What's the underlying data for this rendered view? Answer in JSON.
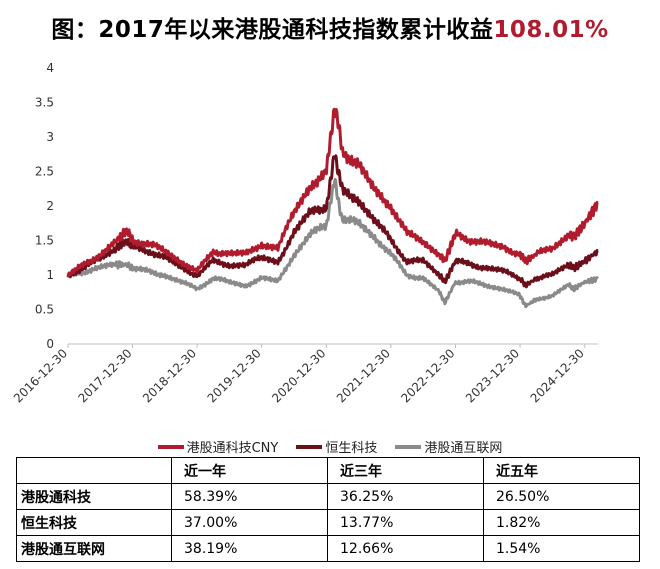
{
  "title": {
    "prefix": "图：2017年以来港股通科技指数累计收益",
    "highlight": "108.01%"
  },
  "colors": {
    "series1": "#b01c2e",
    "series2": "#6b0f1a",
    "series3": "#8a8a8a",
    "highlight": "#b01c2e"
  },
  "chart_data": {
    "type": "line",
    "title": "图：2017年以来港股通科技指数累计收益108.01%",
    "xlabel": "",
    "ylabel": "",
    "ylim": [
      0,
      4
    ],
    "yticks": [
      "0",
      "0.5",
      "1",
      "1.5",
      "2",
      "2.5",
      "3",
      "3.5",
      "4"
    ],
    "xticks": [
      "2016-12-30",
      "2017-12-30",
      "2018-12-30",
      "2019-12-30",
      "2020-12-30",
      "2021-12-30",
      "2022-12-30",
      "2023-12-30",
      "2024-12-30"
    ],
    "grid": false,
    "legend_position": "bottom",
    "x": [
      "2016-12-30",
      "2017-03-31",
      "2017-06-30",
      "2017-09-30",
      "2017-11-30",
      "2017-12-30",
      "2018-03-31",
      "2018-06-30",
      "2018-09-30",
      "2018-12-30",
      "2019-03-31",
      "2019-06-30",
      "2019-09-30",
      "2019-12-30",
      "2020-03-31",
      "2020-06-30",
      "2020-09-30",
      "2020-12-30",
      "2021-02-15",
      "2021-03-31",
      "2021-06-30",
      "2021-09-30",
      "2021-12-30",
      "2022-03-31",
      "2022-06-30",
      "2022-09-30",
      "2022-10-31",
      "2022-12-30",
      "2023-03-31",
      "2023-06-30",
      "2023-09-30",
      "2023-12-30",
      "2024-01-31",
      "2024-03-31",
      "2024-06-30",
      "2024-09-30",
      "2024-10-31",
      "2024-12-30",
      "2025-03-15"
    ],
    "series": [
      {
        "name": "港股通科技CNY",
        "values": [
          1.0,
          1.15,
          1.3,
          1.5,
          1.65,
          1.5,
          1.45,
          1.35,
          1.2,
          1.05,
          1.35,
          1.3,
          1.3,
          1.45,
          1.4,
          1.9,
          2.3,
          2.5,
          3.45,
          2.8,
          2.6,
          2.2,
          2.0,
          1.6,
          1.5,
          1.3,
          1.2,
          1.6,
          1.5,
          1.45,
          1.4,
          1.3,
          1.2,
          1.3,
          1.4,
          1.6,
          1.55,
          1.75,
          2.05
        ]
      },
      {
        "name": "恒生科技",
        "values": [
          1.0,
          1.1,
          1.25,
          1.4,
          1.5,
          1.4,
          1.35,
          1.25,
          1.1,
          1.0,
          1.2,
          1.15,
          1.15,
          1.25,
          1.2,
          1.6,
          1.9,
          2.0,
          2.8,
          2.2,
          2.1,
          1.8,
          1.5,
          1.2,
          1.2,
          1.0,
          0.9,
          1.2,
          1.15,
          1.1,
          1.05,
          0.95,
          0.85,
          0.95,
          1.0,
          1.15,
          1.1,
          1.2,
          1.35
        ]
      },
      {
        "name": "港股通互联网",
        "values": [
          1.0,
          1.05,
          1.1,
          1.15,
          1.15,
          1.1,
          1.05,
          1.0,
          0.9,
          0.8,
          0.95,
          0.9,
          0.85,
          0.95,
          0.9,
          1.3,
          1.6,
          1.7,
          2.35,
          1.8,
          1.75,
          1.55,
          1.3,
          1.0,
          0.95,
          0.75,
          0.6,
          0.9,
          0.9,
          0.85,
          0.8,
          0.7,
          0.55,
          0.65,
          0.7,
          0.85,
          0.8,
          0.9,
          0.95
        ]
      }
    ]
  },
  "table": {
    "header": [
      "",
      "近一年",
      "近三年",
      "近五年"
    ],
    "rows": [
      [
        "港股通科技",
        "58.39%",
        "36.25%",
        "26.50%"
      ],
      [
        "恒生科技",
        "37.00%",
        "13.77%",
        "1.82%"
      ],
      [
        "港股通互联网",
        "38.19%",
        "12.66%",
        "1.54%"
      ]
    ]
  }
}
